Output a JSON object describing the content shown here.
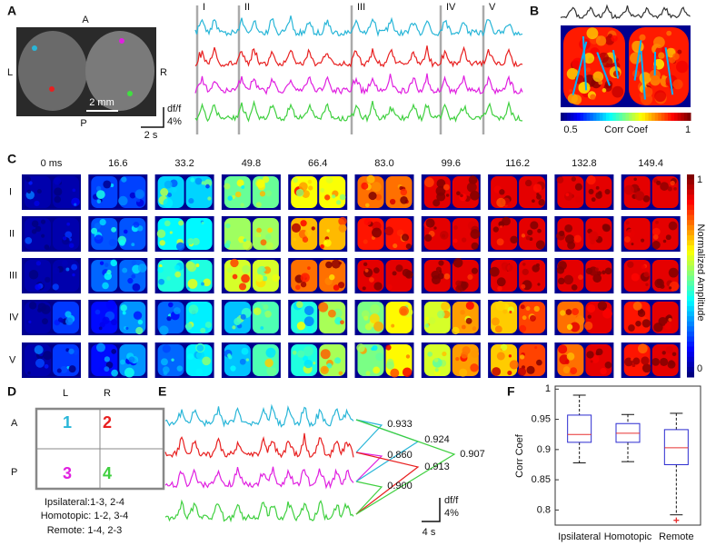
{
  "panel_a": {
    "label": "A",
    "orientation": {
      "anterior": "A",
      "left": "L",
      "right": "R",
      "posterior": "P"
    },
    "scale_bar": "2 mm",
    "trace_scale": {
      "y": "df/f",
      "y_amount": "4%",
      "x": "2 s"
    },
    "events": [
      "I",
      "II",
      "III",
      "IV",
      "V"
    ]
  },
  "panel_b": {
    "label": "B",
    "colorbar": {
      "min_label": "0.5",
      "title": "Corr Coef",
      "max_label": "1"
    }
  },
  "panel_c": {
    "label": "C",
    "times": [
      "0 ms",
      "16.6",
      "33.2",
      "49.8",
      "66.4",
      "83.0",
      "99.6",
      "116.2",
      "132.8",
      "149.4"
    ],
    "rows": [
      "I",
      "II",
      "III",
      "IV",
      "V"
    ],
    "colorbar": {
      "title": "Normalized Amplitude",
      "max_label": "1",
      "min_label": "0"
    }
  },
  "panel_d": {
    "label": "D",
    "columns": [
      "L",
      "R"
    ],
    "rows": [
      "A",
      "P"
    ],
    "regions": [
      "1",
      "2",
      "3",
      "4"
    ],
    "notes": [
      "Ipsilateral:1-3, 2-4",
      "Homotopic: 1-2, 3-4",
      "Remote: 1-4, 2-3"
    ]
  },
  "panel_e": {
    "label": "E",
    "correlations": [
      "0.933",
      "0.924",
      "0.860",
      "0.907",
      "0.913",
      "0.900"
    ],
    "scale": {
      "y": "df/f",
      "y_amount": "4%",
      "x": "4 s"
    }
  },
  "chart_data": {
    "type": "box",
    "label": "F",
    "ylabel": "Corr Coef",
    "categories": [
      "Ipsilateral",
      "Homotopic",
      "Remote"
    ],
    "whisker_low": [
      0.878,
      0.88,
      0.792
    ],
    "q1": [
      0.912,
      0.912,
      0.875
    ],
    "median": [
      0.925,
      0.927,
      0.903
    ],
    "q3": [
      0.957,
      0.943,
      0.933
    ],
    "whisker_high": [
      0.99,
      0.958,
      0.96
    ],
    "outliers": [
      [],
      [],
      [
        0.783
      ]
    ],
    "box_color": "#2b2bd0",
    "median_color": "#e83030",
    "outlier_color": "#e83030",
    "ylim": [
      0.775,
      1.005
    ],
    "yticks": [
      0.8,
      0.85,
      0.9,
      0.95,
      1
    ]
  }
}
